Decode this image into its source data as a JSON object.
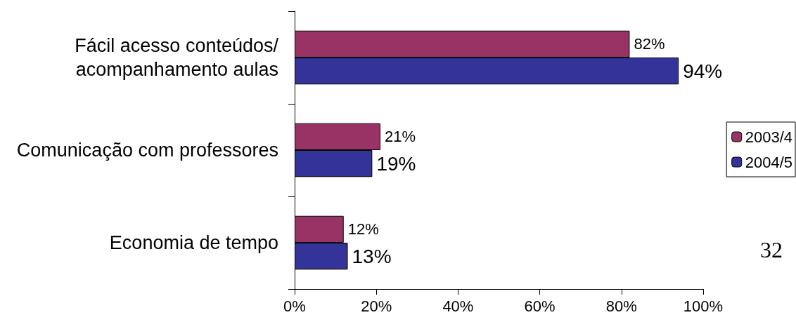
{
  "chart_data": {
    "type": "bar",
    "orientation": "horizontal",
    "categories": [
      "Fácil acesso conteúdos/\nacompanhamento aulas",
      "Comunicação com professores",
      "Economia de tempo"
    ],
    "series": [
      {
        "name": "2003/4",
        "color": "#993366",
        "values": [
          82,
          21,
          12
        ],
        "value_labels": [
          "82%",
          "21%",
          "12%"
        ]
      },
      {
        "name": "2004/5",
        "color": "#333399",
        "values": [
          94,
          19,
          13
        ],
        "value_labels": [
          "94%",
          "19%",
          "13%"
        ]
      }
    ],
    "xlim": [
      0,
      100
    ],
    "xticks": [
      {
        "value": 0,
        "label": "0%"
      },
      {
        "value": 20,
        "label": "20%"
      },
      {
        "value": 40,
        "label": "40%"
      },
      {
        "value": 60,
        "label": "60%"
      },
      {
        "value": 80,
        "label": "80%"
      },
      {
        "value": 100,
        "label": "100%"
      }
    ],
    "grid": false,
    "legend": "right",
    "annotations": [
      "32"
    ]
  }
}
